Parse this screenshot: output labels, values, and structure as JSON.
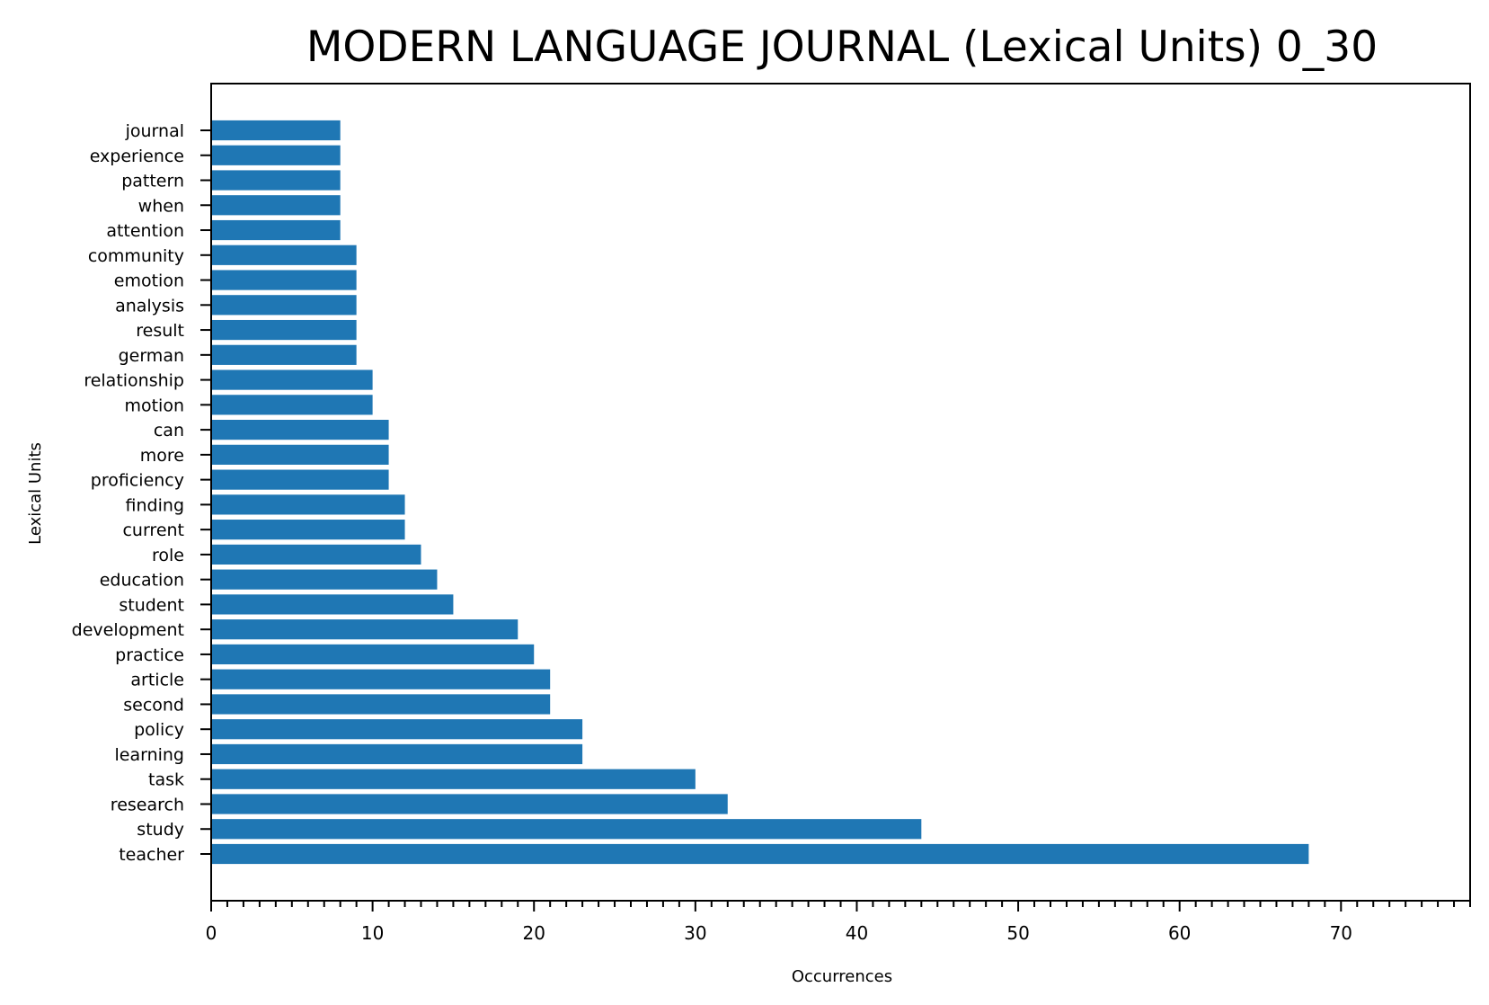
{
  "chart_data": {
    "type": "bar",
    "orientation": "horizontal",
    "title": "MODERN LANGUAGE JOURNAL (Lexical Units) 0_30",
    "xlabel": "Occurrences",
    "ylabel": "Lexical Units",
    "categories": [
      "teacher",
      "study",
      "research",
      "task",
      "learning",
      "policy",
      "second",
      "article",
      "practice",
      "development",
      "student",
      "education",
      "role",
      "current",
      "finding",
      "proficiency",
      "more",
      "can",
      "motion",
      "relationship",
      "german",
      "result",
      "analysis",
      "emotion",
      "community",
      "attention",
      "when",
      "pattern",
      "experience",
      "journal"
    ],
    "values": [
      68,
      44,
      32,
      30,
      23,
      23,
      21,
      21,
      20,
      19,
      15,
      14,
      13,
      12,
      12,
      11,
      11,
      11,
      10,
      10,
      9,
      9,
      9,
      9,
      9,
      8,
      8,
      8,
      8,
      8
    ],
    "xlim": [
      0,
      78
    ],
    "xticks": [
      "0",
      "10",
      "20",
      "30",
      "40",
      "50",
      "60",
      "70"
    ],
    "grid": false,
    "bar_color": "#1f77b4"
  }
}
